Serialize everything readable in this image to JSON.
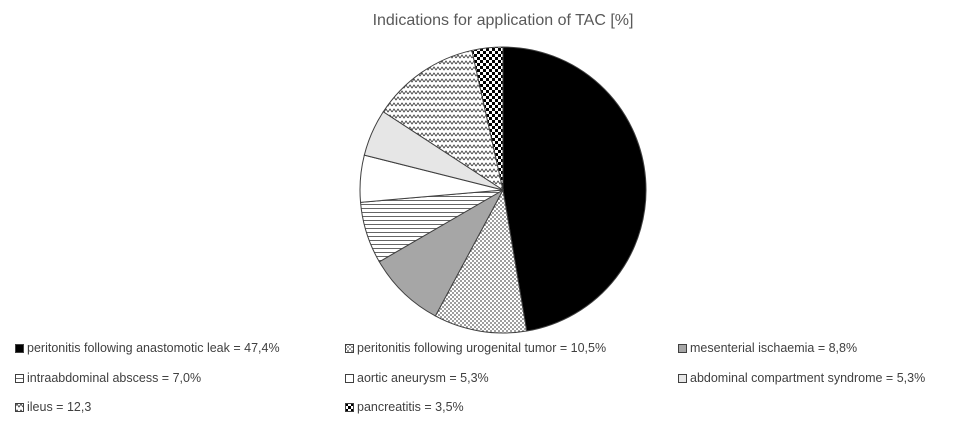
{
  "chart_data": {
    "type": "pie",
    "title": "Indications for application of TAC [%]",
    "slices": [
      {
        "label": "peritonitis following anastomotic leak = 47,4%",
        "value": 47.4,
        "pattern": "solid-black"
      },
      {
        "label": "peritonitis following urogenital tumor = 10,5%",
        "value": 10.5,
        "pattern": "dots"
      },
      {
        "label": "mesenterial ischaemia = 8,8%",
        "value": 8.8,
        "pattern": "solid-gray"
      },
      {
        "label": "intraabdominal abscess = 7,0%",
        "value": 7.0,
        "pattern": "horizontal-lines"
      },
      {
        "label": "aortic aneurysm = 5,3%",
        "value": 5.3,
        "pattern": "white"
      },
      {
        "label": "abdominal compartment syndrome = 5,3%",
        "value": 5.3,
        "pattern": "light-gray"
      },
      {
        "label": "ileus = 12,3",
        "value": 12.3,
        "pattern": "zigzag"
      },
      {
        "label": "pancreatitis = 3,5%",
        "value": 3.5,
        "pattern": "checker"
      }
    ],
    "start_angle": "12 o'clock",
    "direction": "clockwise",
    "legend_placement": "bottom",
    "colors": {
      "outline": "#404040",
      "solid_black": "#000000",
      "solid_gray": "#a6a6a6",
      "light_gray": "#e6e6e6",
      "pattern_ink": "#595959"
    }
  }
}
